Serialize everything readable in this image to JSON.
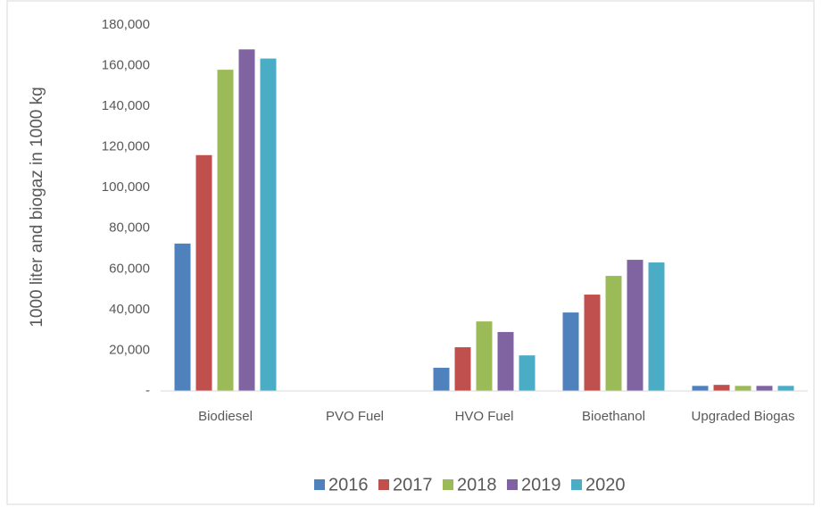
{
  "chart_data": {
    "type": "bar",
    "y_label": "1000 liter and biogaz in 1000 kg",
    "categories": [
      "Biodiesel",
      "PVO Fuel",
      "HVO Fuel",
      "Bioethanol",
      "Upgraded Biogas"
    ],
    "series": [
      {
        "name": "2016",
        "color": "#4f81bd",
        "values": [
          72500,
          0,
          11400,
          38600,
          2500
        ]
      },
      {
        "name": "2017",
        "color": "#c0504d",
        "values": [
          116000,
          0,
          21500,
          47400,
          3000
        ]
      },
      {
        "name": "2018",
        "color": "#9bbb59",
        "values": [
          158000,
          0,
          34200,
          56600,
          2500
        ]
      },
      {
        "name": "2019",
        "color": "#8064a2",
        "values": [
          168000,
          0,
          29000,
          64500,
          2500
        ]
      },
      {
        "name": "2020",
        "color": "#4bacc6",
        "values": [
          163500,
          0,
          17500,
          63200,
          2500
        ]
      }
    ],
    "ylim": [
      0,
      180000
    ],
    "yticks": [
      {
        "value": 0,
        "label": "-"
      },
      {
        "value": 20000,
        "label": "20,000"
      },
      {
        "value": 40000,
        "label": "40,000"
      },
      {
        "value": 60000,
        "label": "60,000"
      },
      {
        "value": 80000,
        "label": "80,000"
      },
      {
        "value": 100000,
        "label": "100,000"
      },
      {
        "value": 120000,
        "label": "120,000"
      },
      {
        "value": 140000,
        "label": "140,000"
      },
      {
        "value": 160000,
        "label": "160,000"
      },
      {
        "value": 180000,
        "label": "180,000"
      }
    ],
    "grid": false,
    "legend": "bottom"
  }
}
